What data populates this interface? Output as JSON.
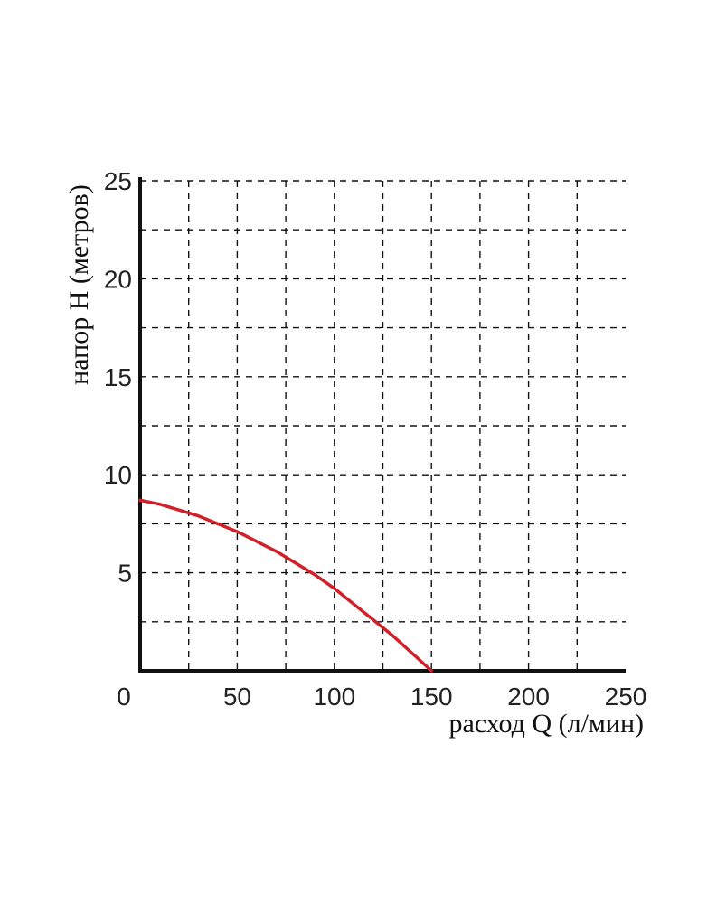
{
  "chart_data": {
    "type": "line",
    "xlabel": "расход Q (л/мин)",
    "ylabel": "напор Н (метров)",
    "xlim": [
      0,
      250
    ],
    "ylim": [
      0,
      25
    ],
    "x_ticks": [
      "0",
      "50",
      "100",
      "150",
      "200",
      "250"
    ],
    "y_ticks": [
      "5",
      "10",
      "15",
      "20",
      "25"
    ],
    "grid": "dashed, every 25 (x) and 2.5 (y)",
    "series": [
      {
        "color": "#d0202a",
        "x": [
          0,
          10,
          20,
          30,
          40,
          50,
          60,
          70,
          80,
          90,
          100,
          110,
          120,
          130,
          140,
          150
        ],
        "y": [
          8.7,
          8.5,
          8.2,
          7.9,
          7.5,
          7.1,
          6.6,
          6.1,
          5.5,
          4.9,
          4.2,
          3.4,
          2.6,
          1.8,
          0.9,
          0
        ]
      }
    ],
    "colors": {
      "axis": "#111111",
      "grid": "#111111",
      "curve": "#d0202a"
    }
  }
}
